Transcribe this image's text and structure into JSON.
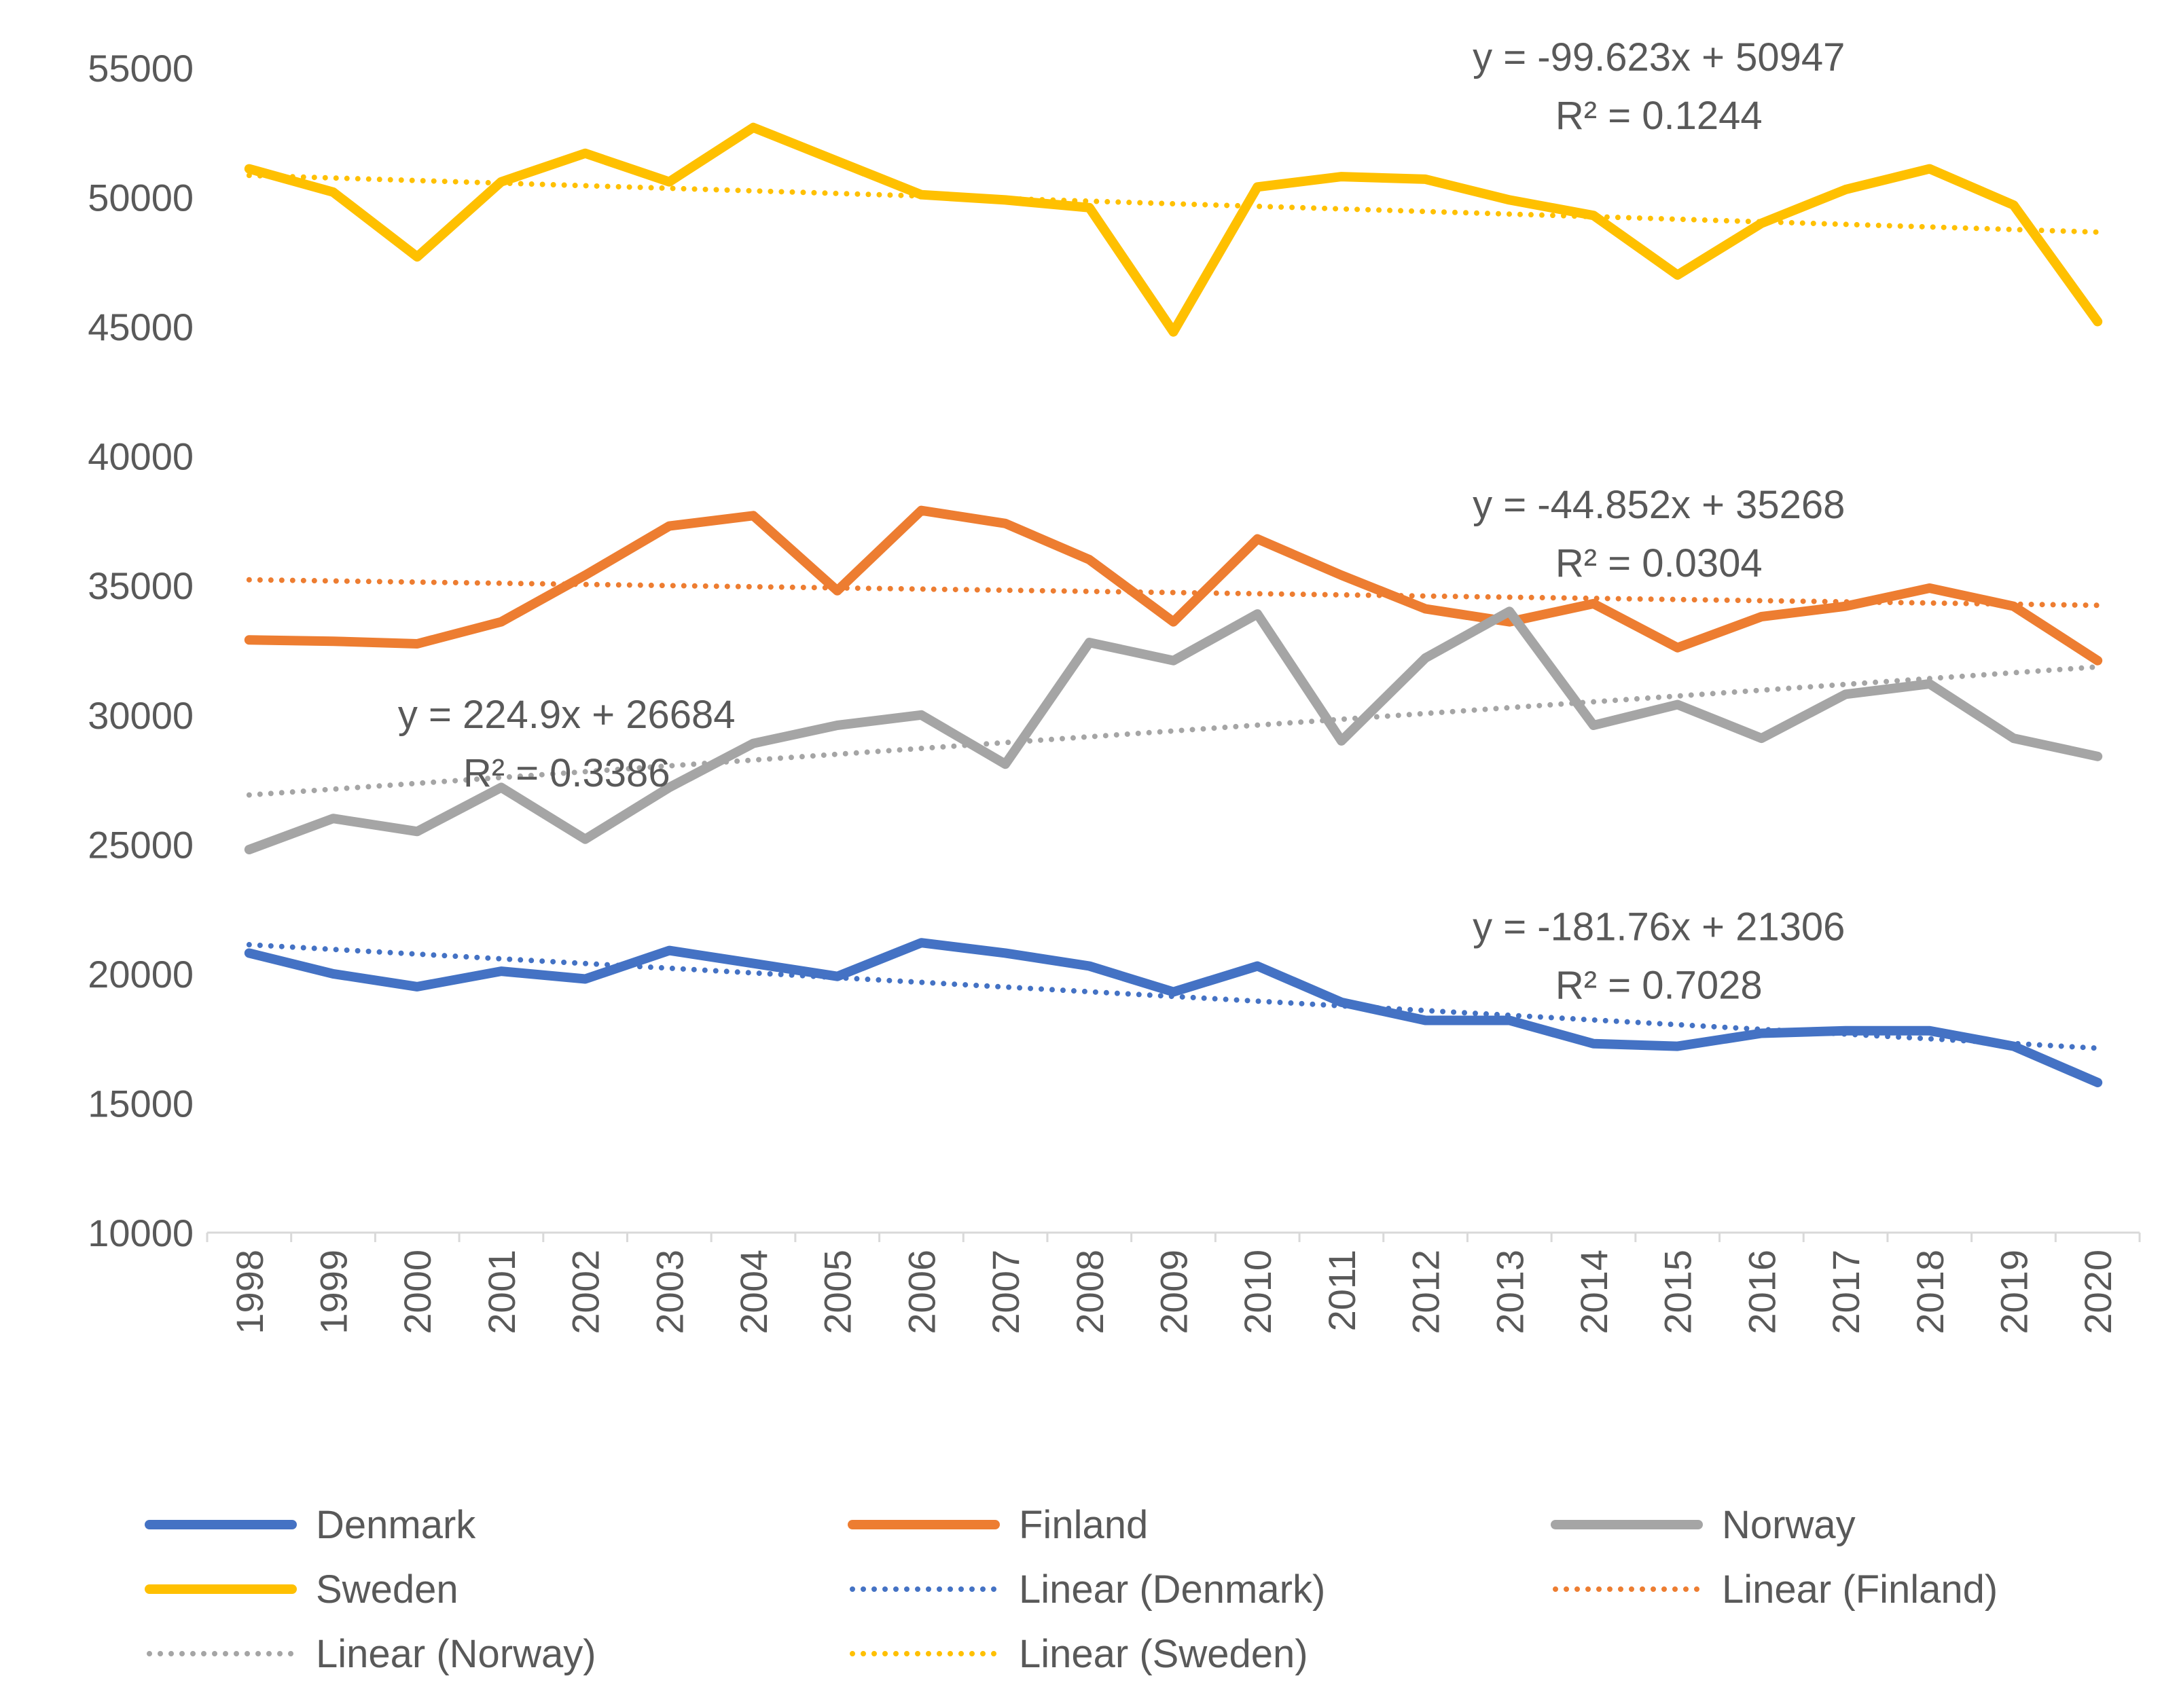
{
  "chart_data": {
    "type": "line",
    "title": "",
    "xlabel": "",
    "ylabel": "",
    "ylim": [
      10000,
      55000
    ],
    "yticks": [
      10000,
      15000,
      20000,
      25000,
      30000,
      35000,
      40000,
      45000,
      50000,
      55000
    ],
    "ytick_labels": [
      "10000",
      "15000",
      "20000",
      "25000",
      "30000",
      "35000",
      "40000",
      "45000",
      "50000",
      "55000"
    ],
    "categories": [
      "1998",
      "1999",
      "2000",
      "2001",
      "2002",
      "2003",
      "2004",
      "2005",
      "2006",
      "2007",
      "2008",
      "2009",
      "2010",
      "2011",
      "2012",
      "2013",
      "2014",
      "2015",
      "2016",
      "2017",
      "2018",
      "2019",
      "2020"
    ],
    "grid": false,
    "legend_position": "bottom",
    "series": [
      {
        "name": "Denmark",
        "color": "#4472C4",
        "style": "solid",
        "values": [
          20800,
          20000,
          19500,
          20100,
          19800,
          20900,
          20400,
          19900,
          21200,
          20800,
          20300,
          19300,
          20300,
          18900,
          18200,
          18200,
          17300,
          17200,
          17700,
          17800,
          17800,
          17200,
          15800
        ]
      },
      {
        "name": "Finland",
        "color": "#ED7D31",
        "style": "solid",
        "values": [
          32900,
          32850,
          32750,
          33600,
          35400,
          37300,
          37700,
          34800,
          37900,
          37400,
          36000,
          33600,
          36800,
          35400,
          34100,
          33600,
          34300,
          32600,
          33800,
          34200,
          34900,
          34200,
          32100
        ]
      },
      {
        "name": "Norway",
        "color": "#A5A5A5",
        "style": "solid",
        "values": [
          24800,
          26000,
          25500,
          27200,
          25200,
          27200,
          28900,
          29600,
          30000,
          28100,
          32800,
          32100,
          33900,
          29000,
          32200,
          34000,
          29600,
          30400,
          29100,
          30800,
          31200,
          29100,
          28400
        ]
      },
      {
        "name": "Sweden",
        "color": "#FFC000",
        "style": "solid",
        "values": [
          51100,
          50200,
          47700,
          50600,
          51700,
          50600,
          52700,
          51400,
          50100,
          49900,
          49600,
          44800,
          50400,
          50800,
          50700,
          49900,
          49300,
          47000,
          49000,
          50300,
          51100,
          49700,
          45200
        ]
      },
      {
        "name": "Linear (Denmark)",
        "color": "#4472C4",
        "style": "dotted",
        "trend_of": "Denmark",
        "slope": -181.76,
        "intercept": 21306
      },
      {
        "name": "Linear (Finland)",
        "color": "#ED7D31",
        "style": "dotted",
        "trend_of": "Finland",
        "slope": -44.852,
        "intercept": 35268
      },
      {
        "name": "Linear (Norway)",
        "color": "#A5A5A5",
        "style": "dotted",
        "trend_of": "Norway",
        "slope": 224.9,
        "intercept": 26684
      },
      {
        "name": "Linear (Sweden)",
        "color": "#FFC000",
        "style": "dotted",
        "trend_of": "Sweden",
        "slope": -99.623,
        "intercept": 50947
      }
    ],
    "annotations": [
      {
        "series": "Sweden",
        "equation": "y = -99.623x + 50947",
        "r2": "R² = 0.1244",
        "anchor_year": "2013",
        "anchor_value": 54900
      },
      {
        "series": "Finland",
        "equation": "y = -44.852x + 35268",
        "r2": "R² = 0.0304",
        "anchor_year": "2013",
        "anchor_value": 37600
      },
      {
        "series": "Norway",
        "equation": "y = 224.9x + 26684",
        "r2": "R² = 0.3386",
        "anchor_year": "2000",
        "anchor_value": 29500
      },
      {
        "series": "Denmark",
        "equation": "y = -181.76x + 21306",
        "r2": "R² = 0.7028",
        "anchor_year": "2013",
        "anchor_value": 21300
      }
    ],
    "legend": [
      [
        "Denmark",
        "Finland",
        "Norway"
      ],
      [
        "Sweden",
        "Linear (Denmark)",
        "Linear (Finland)"
      ],
      [
        "Linear (Norway)",
        "Linear (Sweden)"
      ]
    ]
  }
}
